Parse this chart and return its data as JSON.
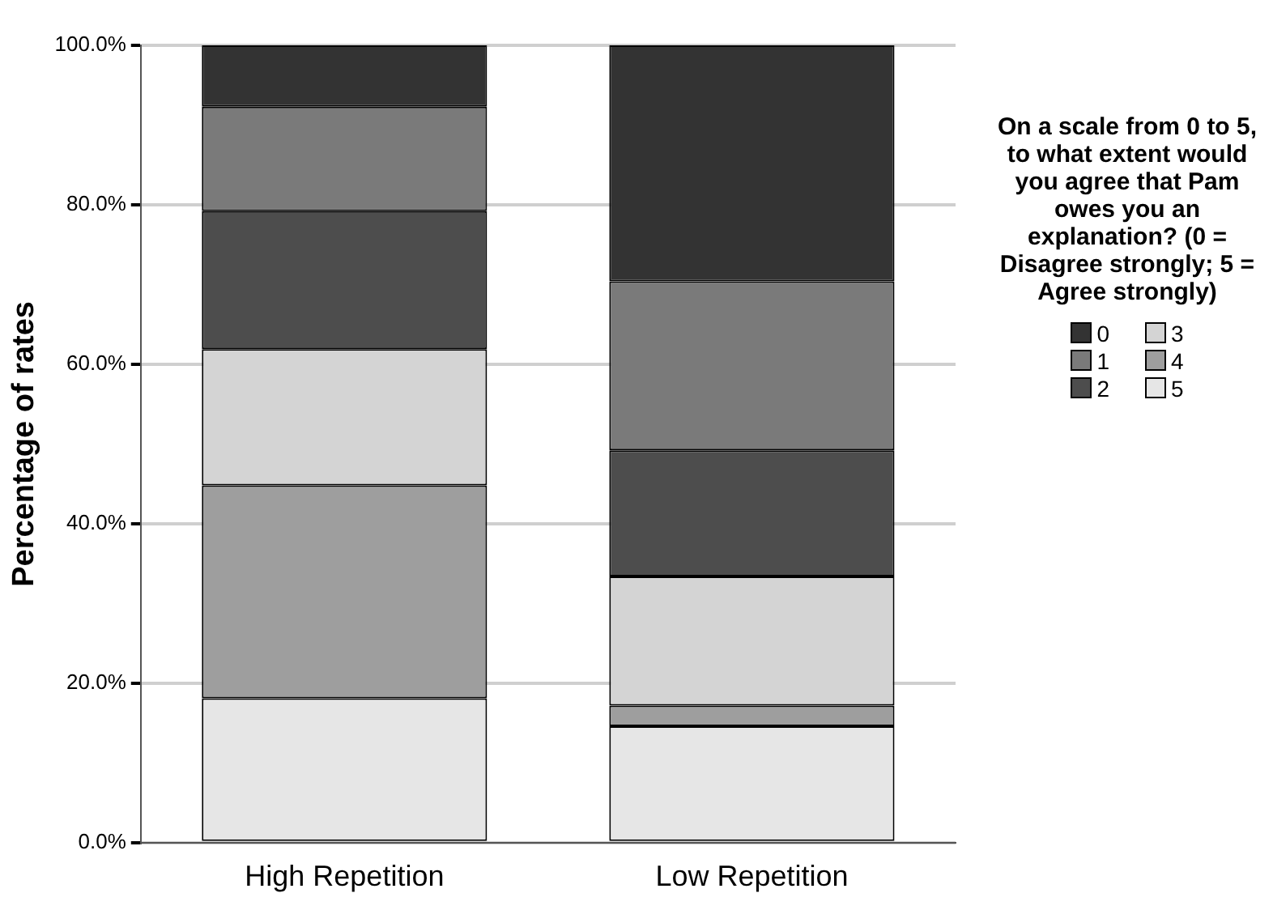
{
  "chart_data": {
    "type": "bar",
    "stacked": true,
    "ylabel": "Percentage of rates",
    "legend_title": "On a scale from 0 to 5, to what extent would you agree that Pam owes you an explanation? (0 = Disagree strongly; 5 = Agree strongly)",
    "legend": "right",
    "grid": "y",
    "categories": [
      "High Repetition",
      "Low Repetition"
    ],
    "ylim": [
      0,
      100
    ],
    "yticks": [
      {
        "value": 0,
        "label": "0.0%"
      },
      {
        "value": 20,
        "label": "20.0%"
      },
      {
        "value": 40,
        "label": "40.0%"
      },
      {
        "value": 60,
        "label": "60.0%"
      },
      {
        "value": 80,
        "label": "80.0%"
      },
      {
        "value": 100,
        "label": "100.0%"
      }
    ],
    "series": [
      {
        "name": "5",
        "color": "#e6e6e6",
        "values": [
          18.1,
          14.6
        ]
      },
      {
        "name": "4",
        "color": "#9e9e9e",
        "values": [
          26.7,
          2.6
        ]
      },
      {
        "name": "3",
        "color": "#d4d4d4",
        "values": [
          17.1,
          16.2
        ]
      },
      {
        "name": "2",
        "color": "#4d4d4d",
        "values": [
          17.3,
          15.8
        ]
      },
      {
        "name": "1",
        "color": "#7a7a7a",
        "values": [
          13.1,
          21.2
        ]
      },
      {
        "name": "0",
        "color": "#333333",
        "values": [
          7.7,
          29.6
        ]
      }
    ]
  }
}
